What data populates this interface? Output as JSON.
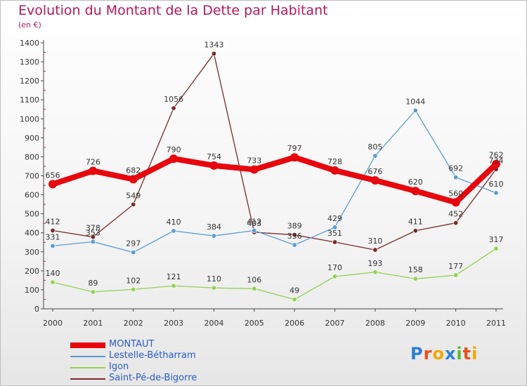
{
  "title": "Evolution du Montant de la Dette par Habitant",
  "subtitle": "(en €)",
  "logo_text": "Proxiti",
  "chart_data": {
    "type": "line",
    "title": "Evolution du Montant de la Dette par Habitant",
    "subtitle": "(en €)",
    "xlabel": "",
    "ylabel": "",
    "ylim": [
      0,
      1400
    ],
    "yticks": [
      0,
      100,
      200,
      300,
      400,
      500,
      600,
      700,
      800,
      900,
      1000,
      1100,
      1200,
      1300,
      1400
    ],
    "x": [
      "2000",
      "2001",
      "2002",
      "2003",
      "2004",
      "2005",
      "2006",
      "2007",
      "2008",
      "2009",
      "2010",
      "2011"
    ],
    "grid": false,
    "legend_position": "bottom-left",
    "series": [
      {
        "name": "MONTAUT",
        "color": "#e8060d",
        "values": [
          656,
          726,
          682,
          790,
          754,
          733,
          797,
          728,
          676,
          620,
          560,
          762
        ]
      },
      {
        "name": "Lestelle-Bétharram",
        "color": "#5b9bd5",
        "values": [
          331,
          353,
          297,
          410,
          384,
          412,
          336,
          429,
          805,
          1044,
          692,
          610
        ]
      },
      {
        "name": "Igon",
        "color": "#92d050",
        "values": [
          140,
          89,
          102,
          121,
          110,
          106,
          49,
          170,
          193,
          158,
          177,
          317
        ]
      },
      {
        "name": "Saint-Pé-de-Bigorre",
        "color": "#7b2a2a",
        "values": [
          412,
          378,
          549,
          1056,
          1343,
          403,
          389,
          351,
          310,
          411,
          452,
          734
        ]
      }
    ]
  }
}
